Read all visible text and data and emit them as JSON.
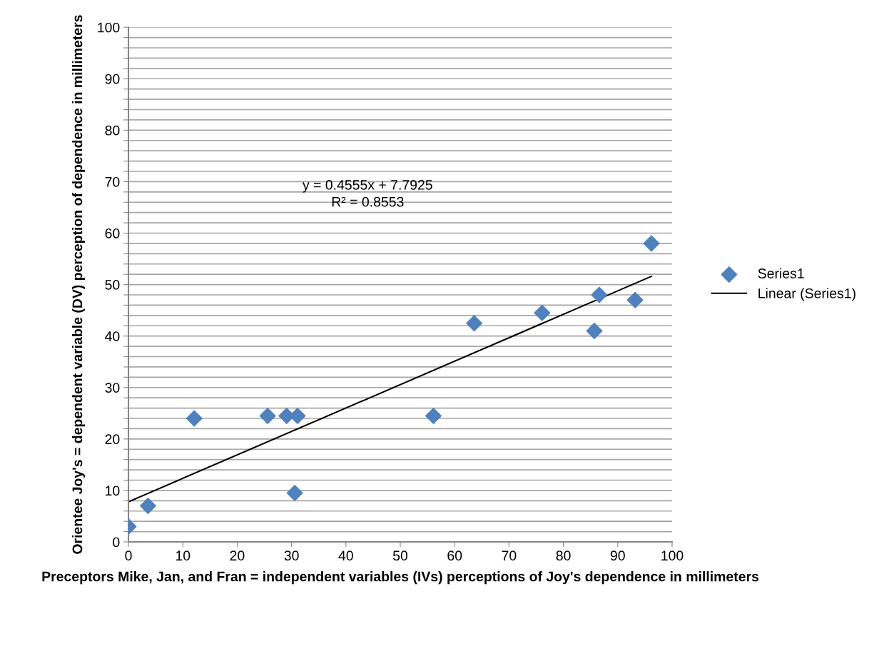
{
  "chart_data": {
    "type": "scatter",
    "xlabel": "Preceptors Mike, Jan, and Fran = independent variables (IVs) perceptions of Joy's dependence in millimeters",
    "ylabel": "Orientee Joy's = dependent variable (DV) perception of dependence in millimeters",
    "series": [
      {
        "name": "Series1",
        "color": "#4f81bd",
        "marker": "diamond",
        "x": [
          0,
          3.6,
          12.1,
          25.6,
          29.1,
          31.1,
          30.6,
          56.1,
          63.6,
          76.1,
          85.7,
          86.6,
          93.2,
          96.2
        ],
        "values": [
          3,
          7,
          24,
          24.5,
          24.5,
          24.5,
          9.5,
          24.5,
          42.5,
          44.5,
          41,
          48,
          47,
          58
        ]
      },
      {
        "name": "Linear (Series1)",
        "type": "line",
        "color": "#000000",
        "line_style": "solid",
        "x": [
          0,
          96.2
        ],
        "values": [
          7.8,
          51.6
        ]
      }
    ],
    "annotations": [
      "y = 0.4555x + 7.7925\nR² = 0.8553"
    ],
    "xlim": [
      0,
      100
    ],
    "xticks": [
      0,
      10,
      20,
      30,
      40,
      50,
      60,
      70,
      80,
      90,
      100
    ],
    "ylim": [
      0,
      100
    ],
    "yticks": [
      0,
      {
        "value": 2,
        "label": null
      },
      {
        "value": 4,
        "label": null
      },
      {
        "value": 6,
        "label": null
      },
      {
        "value": 8,
        "label": null
      },
      10,
      {
        "value": 12,
        "label": null
      },
      {
        "value": 14,
        "label": null
      },
      {
        "value": 16,
        "label": null
      },
      {
        "value": 18,
        "label": null
      },
      20,
      {
        "value": 22,
        "label": null
      },
      {
        "value": 24,
        "label": null
      },
      {
        "value": 26,
        "label": null
      },
      {
        "value": 28,
        "label": null
      },
      30,
      {
        "value": 32,
        "label": null
      },
      {
        "value": 34,
        "label": null
      },
      {
        "value": 36,
        "label": null
      },
      {
        "value": 38,
        "label": null
      },
      40,
      {
        "value": 42,
        "label": null
      },
      {
        "value": 44,
        "label": null
      },
      {
        "value": 46,
        "label": null
      },
      {
        "value": 48,
        "label": null
      },
      50,
      {
        "value": 52,
        "label": null
      },
      {
        "value": 54,
        "label": null
      },
      {
        "value": 56,
        "label": null
      },
      {
        "value": 58,
        "label": null
      },
      60,
      {
        "value": 62,
        "label": null
      },
      {
        "value": 64,
        "label": null
      },
      {
        "value": 66,
        "label": null
      },
      {
        "value": 68,
        "label": null
      },
      70,
      {
        "value": 72,
        "label": null
      },
      {
        "value": 74,
        "label": null
      },
      {
        "value": 76,
        "label": null
      },
      {
        "value": 78,
        "label": null
      },
      80,
      {
        "value": 82,
        "label": null
      },
      {
        "value": 84,
        "label": null
      },
      {
        "value": 86,
        "label": null
      },
      {
        "value": 88,
        "label": null
      },
      90,
      {
        "value": 92,
        "label": null
      },
      {
        "value": 94,
        "label": null
      },
      {
        "value": 96,
        "label": null
      },
      {
        "value": 98,
        "label": null
      },
      100
    ],
    "grid": "y",
    "legend": "right"
  }
}
